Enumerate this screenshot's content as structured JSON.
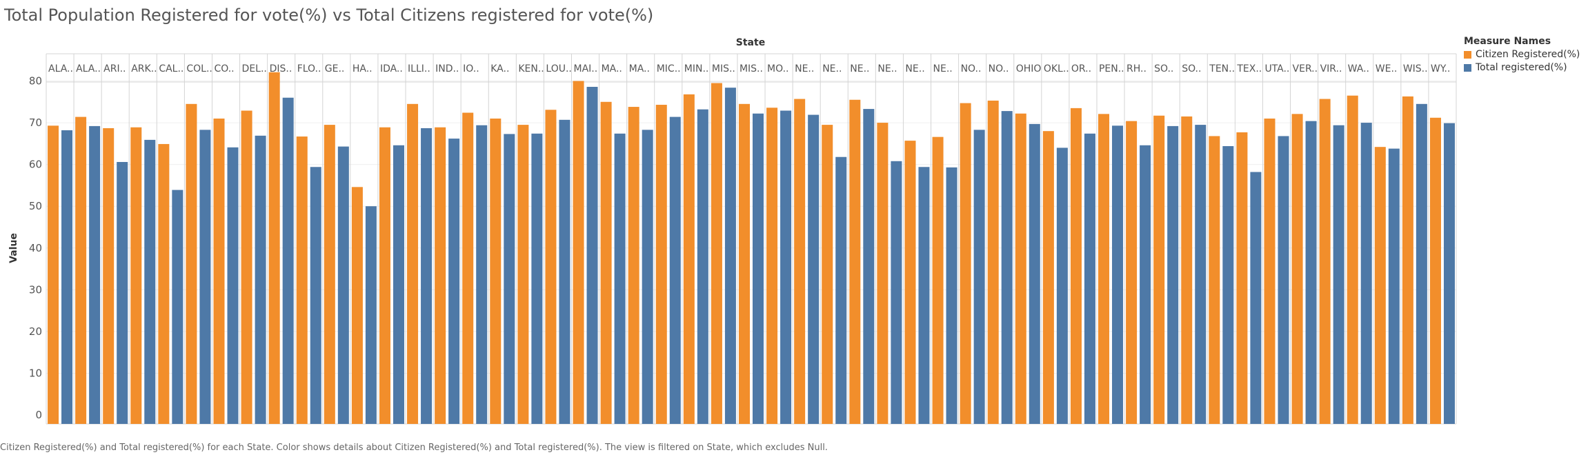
{
  "chart_data": {
    "type": "bar",
    "title": "Total Population Registered for vote(%) vs Total Citizens registered for vote(%)",
    "column_header": "State",
    "ylabel": "Value",
    "ylim": [
      0,
      88
    ],
    "yticks": [
      0,
      10,
      20,
      30,
      40,
      50,
      60,
      70,
      80
    ],
    "grid": true,
    "legend_title": "Measure Names",
    "legend_position": "right",
    "categories": [
      "ALA..",
      "ALA..",
      "ARI..",
      "ARK..",
      "CAL..",
      "COL..",
      "CO..",
      "DEL..",
      "DIS..",
      "FLO..",
      "GE..",
      "HA..",
      "IDA..",
      "ILLI..",
      "IND..",
      "IO..",
      "KA..",
      "KEN..",
      "LOU..",
      "MAI..",
      "MA..",
      "MA..",
      "MIC..",
      "MIN..",
      "MIS..",
      "MIS..",
      "MO..",
      "NE..",
      "NE..",
      "NE..",
      "NE..",
      "NE..",
      "NE..",
      "NO..",
      "NO..",
      "OHIO",
      "OKL..",
      "OR..",
      "PEN..",
      "RH..",
      "SO..",
      "SO..",
      "TEN..",
      "TEX..",
      "UTA..",
      "VER..",
      "VIR..",
      "WA..",
      "WE..",
      "WIS..",
      "WY.."
    ],
    "series": [
      {
        "name": "Citizen Registered(%)",
        "color": "#F28E2B",
        "values": [
          69.3,
          71.4,
          68.7,
          68.9,
          64.9,
          74.5,
          71.0,
          72.9,
          82.1,
          66.7,
          69.5,
          54.6,
          68.9,
          74.5,
          68.9,
          72.4,
          71.0,
          69.5,
          73.1,
          80.0,
          75.0,
          73.8,
          74.3,
          76.8,
          79.5,
          74.5,
          73.6,
          75.7,
          69.5,
          75.5,
          70.0,
          65.7,
          66.6,
          74.7,
          75.3,
          72.2,
          68.0,
          73.5,
          72.1,
          70.4,
          71.7,
          71.5,
          66.8,
          67.7,
          71.0,
          72.1,
          75.7,
          76.5,
          64.2,
          76.3,
          71.2
        ]
      },
      {
        "name": "Total registered(%)",
        "color": "#4E79A7",
        "values": [
          68.2,
          69.2,
          60.6,
          65.9,
          53.9,
          68.3,
          64.1,
          66.9,
          76.0,
          59.4,
          64.3,
          50.0,
          64.6,
          68.7,
          66.2,
          69.4,
          67.3,
          67.4,
          70.7,
          78.6,
          67.4,
          68.3,
          71.4,
          73.2,
          78.4,
          72.2,
          72.9,
          71.9,
          61.8,
          73.3,
          60.8,
          59.4,
          59.3,
          68.3,
          72.8,
          69.7,
          64.0,
          67.4,
          69.3,
          64.6,
          69.2,
          69.5,
          64.4,
          58.2,
          66.8,
          70.4,
          69.4,
          70.0,
          63.8,
          74.5,
          69.9
        ]
      }
    ]
  },
  "caption": "Citizen Registered(%) and Total registered(%) for each State.  Color shows details about Citizen Registered(%) and Total registered(%). The view is filtered on State, which excludes Null."
}
